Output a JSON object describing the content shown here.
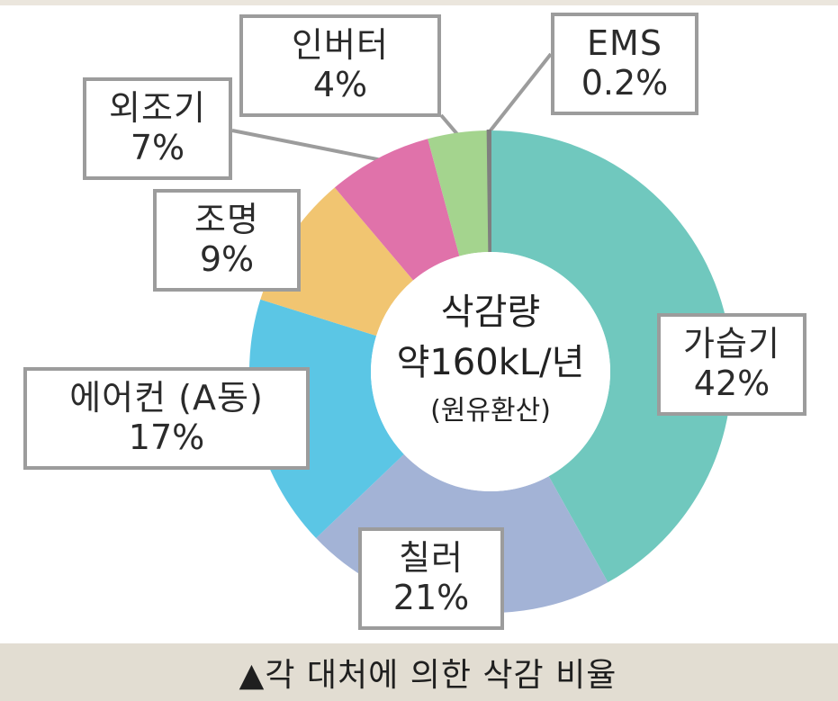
{
  "chart_data": {
    "type": "pie",
    "style": "donut",
    "categories": [
      "가습기",
      "칠러",
      "에어컨 (A동)",
      "조명",
      "외조기",
      "인버터",
      "EMS"
    ],
    "values": [
      42,
      21,
      17,
      9,
      7,
      4,
      0.2
    ],
    "value_labels": [
      "42%",
      "21%",
      "17%",
      "9%",
      "7%",
      "4%",
      "0.2%"
    ],
    "colors": [
      "#70c8be",
      "#a3b3d6",
      "#5bc6e5",
      "#f1c571",
      "#e072aa",
      "#a4d48e",
      "#7f7f7f"
    ],
    "center": {
      "title": "삭감량",
      "value": "약160kL/년",
      "note": "(원유환산)"
    },
    "caption": "▲각 대처에 의한 삭감 비율"
  }
}
